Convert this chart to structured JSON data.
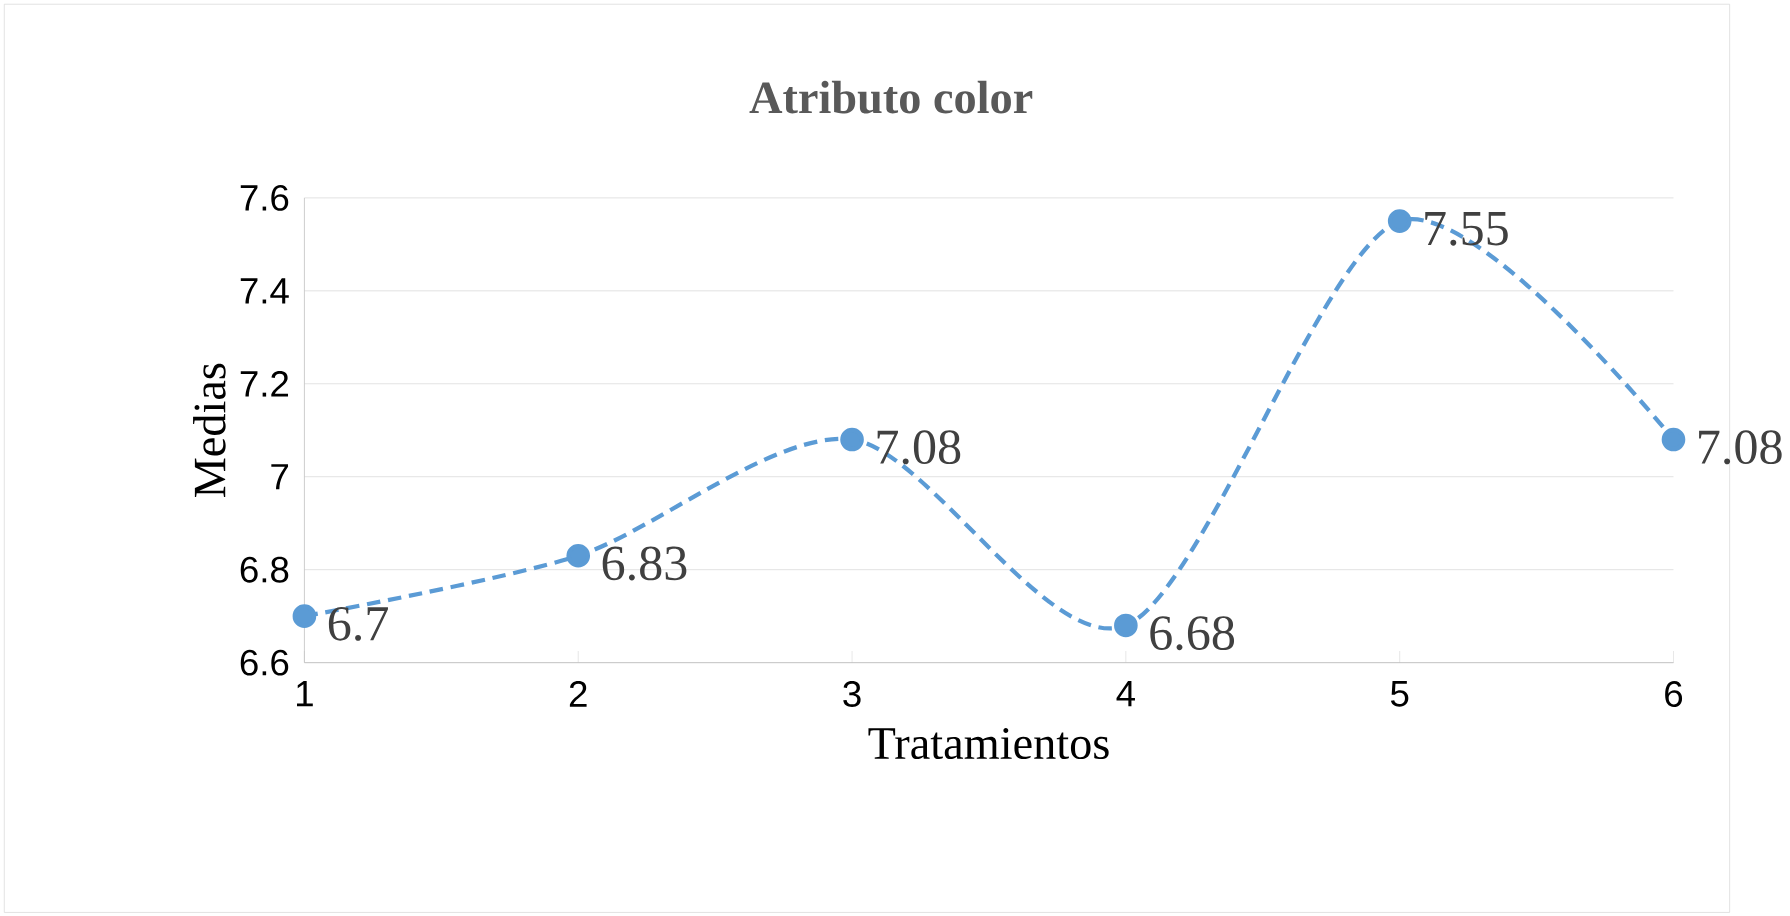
{
  "chart_data": {
    "type": "line",
    "title": "Atributo color",
    "xlabel": "Tratamientos",
    "ylabel": "Medias",
    "x": [
      1,
      2,
      3,
      4,
      5,
      6
    ],
    "series": [
      {
        "color": "#5b9bd5",
        "values": [
          6.7,
          6.83,
          7.08,
          6.68,
          7.55,
          7.08
        ],
        "value_labels": [
          "6.7",
          "6.83",
          "7.08",
          "6.68",
          "7.55",
          "7.08"
        ]
      }
    ],
    "xlim": [
      1,
      6
    ],
    "xticks": [
      1,
      2,
      3,
      4,
      5,
      6
    ],
    "ylim": [
      6.6,
      7.6
    ],
    "yticks": [
      6.6,
      6.8,
      7,
      7.2,
      7.4,
      7.6
    ],
    "grid": "y",
    "marker": "circle",
    "line_style": "dashed"
  }
}
